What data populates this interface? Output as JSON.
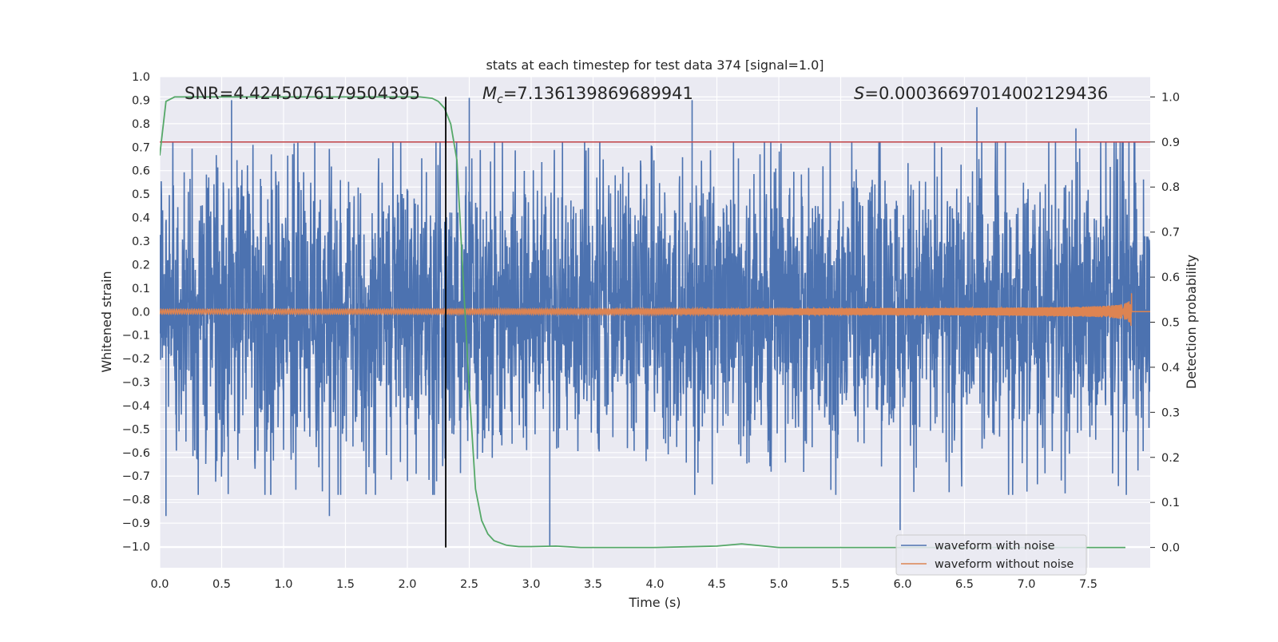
{
  "chart_data": {
    "type": "line",
    "title": "stats at each timestep for test data 374 [signal=1.0]",
    "xlabel": "Time (s)",
    "ylabel": "Whitened strain",
    "y2label": "Detection probability",
    "xlim": [
      0.0,
      8.0
    ],
    "ylim": [
      -1.09,
      1.0
    ],
    "y2lim": [
      -0.045,
      1.045
    ],
    "x_ticks": [
      "0.0",
      "0.5",
      "1.0",
      "1.5",
      "2.0",
      "2.5",
      "3.0",
      "3.5",
      "4.0",
      "4.5",
      "5.0",
      "5.5",
      "6.0",
      "6.5",
      "7.0",
      "7.5"
    ],
    "y_ticks": [
      "1.0",
      "0.9",
      "0.8",
      "0.7",
      "0.6",
      "0.5",
      "0.4",
      "0.3",
      "0.2",
      "0.1",
      "0.0",
      "−0.1",
      "−0.2",
      "−0.3",
      "−0.4",
      "−0.5",
      "−0.6",
      "−0.7",
      "−0.8",
      "−0.9",
      "−1.0"
    ],
    "y2_ticks": [
      "1.0",
      "0.9",
      "0.8",
      "0.7",
      "0.6",
      "0.5",
      "0.4",
      "0.3",
      "0.2",
      "0.1",
      "0.0"
    ],
    "grid": true,
    "legend_position": "bottom-right",
    "annotations": {
      "snr": "SNR=4.4245076179504395",
      "mc": "=7.136139869689941",
      "mc_symbol": "M",
      "mc_sub": "c",
      "s": "=0.00036697014002129436",
      "s_symbol": "S"
    },
    "series": [
      {
        "name": "waveform with noise",
        "color": "#4c72b0",
        "axis": "left",
        "noise_amplitude": 0.55,
        "notable_peaks": [
          [
            0.58,
            0.9
          ],
          [
            2.5,
            0.91
          ],
          [
            4.3,
            0.9
          ],
          [
            6.6,
            0.87
          ],
          [
            7.4,
            0.78
          ],
          [
            0.05,
            -0.87
          ],
          [
            1.37,
            -0.87
          ],
          [
            3.15,
            -1.0
          ],
          [
            5.98,
            -0.93
          ]
        ]
      },
      {
        "name": "waveform without noise",
        "color": "#dd8452",
        "axis": "left",
        "chirp_end_time": 7.85,
        "max_amplitude": 0.2
      },
      {
        "name": "detection probability",
        "color": "#55a868",
        "axis": "right",
        "x": [
          0.0,
          0.05,
          0.12,
          0.5,
          1.0,
          2.0,
          2.1,
          2.2,
          2.25,
          2.3,
          2.35,
          2.4,
          2.45,
          2.5,
          2.55,
          2.6,
          2.65,
          2.7,
          2.8,
          2.9,
          3.0,
          3.2,
          3.4,
          4.0,
          4.5,
          4.7,
          4.85,
          5.0,
          6.0,
          7.0,
          7.8
        ],
        "y": [
          0.87,
          0.99,
          1.0,
          1.0,
          1.0,
          1.0,
          1.0,
          0.997,
          0.99,
          0.975,
          0.94,
          0.86,
          0.6,
          0.35,
          0.13,
          0.06,
          0.03,
          0.015,
          0.005,
          0.002,
          0.002,
          0.003,
          0.0,
          0.0,
          0.003,
          0.008,
          0.004,
          0.0,
          0.0,
          0.0,
          0.0
        ]
      }
    ],
    "threshold_line": {
      "value": 0.9,
      "axis": "right",
      "color": "#c44e52"
    },
    "marker_line": {
      "x": 2.31,
      "color": "#000000"
    }
  }
}
